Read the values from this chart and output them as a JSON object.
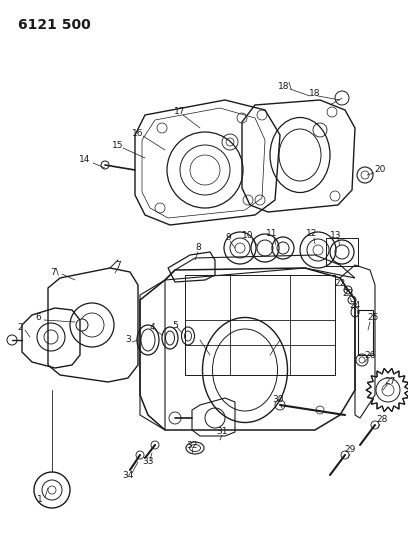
{
  "title": "6121 500",
  "bg": "#ffffff",
  "lc": "#1a1a1a",
  "tc": "#1a1a1a",
  "fig_width": 4.08,
  "fig_height": 5.33,
  "dpi": 100
}
